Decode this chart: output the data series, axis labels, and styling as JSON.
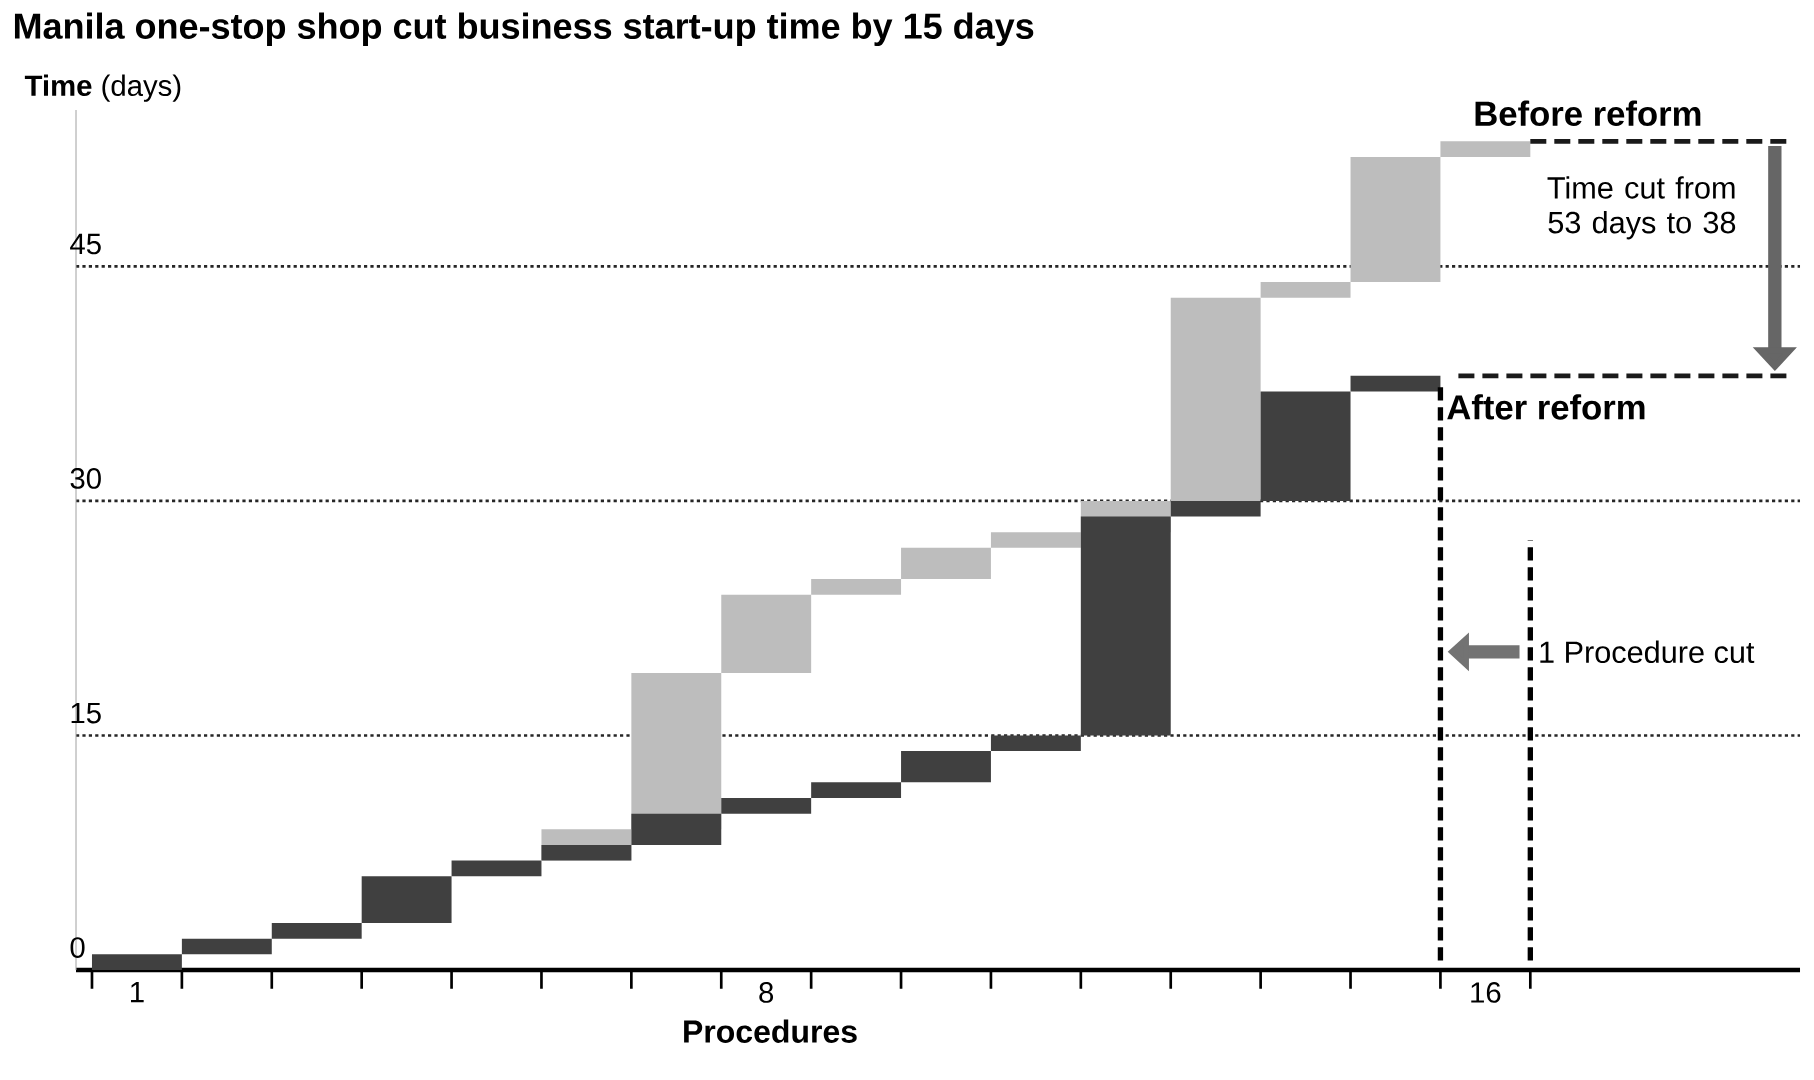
{
  "chart_data": {
    "type": "bar",
    "title": "Manila one-stop shop cut business start-up time by 15 days",
    "xlabel": "Procedures",
    "ylabel": "**Time** (days)",
    "categories": [
      "1",
      null,
      null,
      null,
      null,
      null,
      null,
      "8",
      null,
      null,
      null,
      null,
      null,
      null,
      null,
      "16"
    ],
    "series": [
      {
        "color": "#bdbdbd",
        "base": [
          null,
          null,
          null,
          null,
          null,
          7,
          9,
          19,
          24,
          25,
          27,
          28,
          30,
          43,
          44,
          52
        ],
        "values": [
          null,
          null,
          null,
          null,
          null,
          2,
          10,
          5,
          1,
          2,
          1,
          2,
          13,
          1,
          8,
          1
        ]
      },
      {
        "color": "#404040",
        "base": [
          0,
          1,
          2,
          3,
          6,
          7,
          8,
          10,
          11,
          12,
          14,
          15,
          29,
          30,
          37,
          null
        ],
        "values": [
          1,
          1,
          1,
          3,
          1,
          1,
          2,
          1,
          1,
          2,
          1,
          14,
          1,
          7,
          1,
          null
        ]
      }
    ],
    "ylim": [
      0,
      55
    ],
    "yticks": [
      0,
      15,
      30,
      45
    ],
    "grid": "y",
    "ref_lines": [
      {
        "axis": "y",
        "value": 53,
        "label": "Before reform",
        "line_style": "dashed",
        "color": "#1a1a1a"
      },
      {
        "axis": "y",
        "value": 38,
        "label": "After reform",
        "line_style": "dashed",
        "color": "#1a1a1a"
      }
    ],
    "annotations": [
      "Time cut from 53 days to 38",
      "1 Procedure cut"
    ]
  }
}
